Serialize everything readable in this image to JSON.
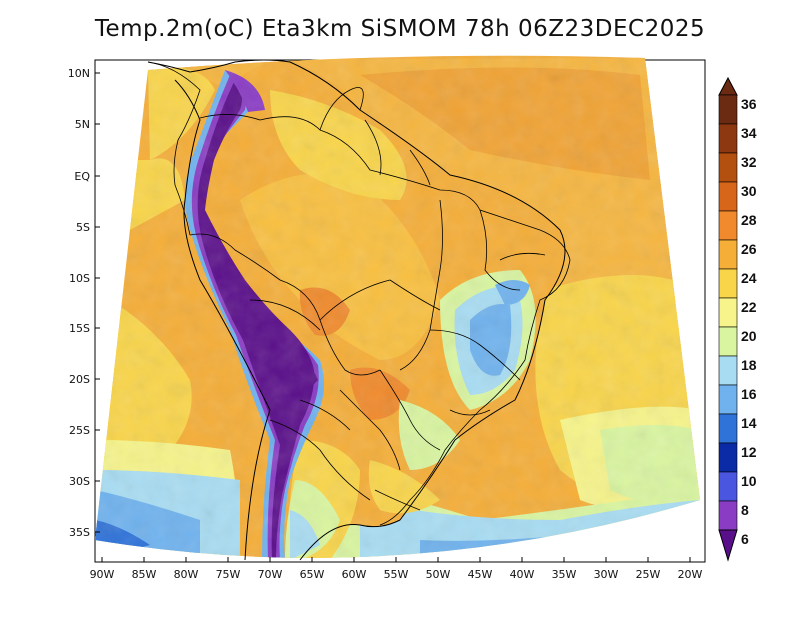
{
  "title": "Temp.2m(oC) Eta3km SiSMOM 78h 06Z23DEC2025",
  "lat_labels": [
    "10N",
    "5N",
    "EQ",
    "5S",
    "10S",
    "15S",
    "20S",
    "25S",
    "30S",
    "35S"
  ],
  "lon_labels": [
    "90W",
    "85W",
    "80W",
    "75W",
    "70W",
    "65W",
    "60W",
    "55W",
    "50W",
    "45W",
    "40W",
    "35W",
    "30W",
    "25W",
    "20W"
  ],
  "colorbar": {
    "labels": [
      "36",
      "34",
      "32",
      "30",
      "28",
      "26",
      "24",
      "22",
      "20",
      "18",
      "16",
      "14",
      "12",
      "10",
      "8",
      "6"
    ],
    "colors": [
      "#6b2a12",
      "#8e3812",
      "#b4500f",
      "#d8661a",
      "#f08a2c",
      "#f5ae38",
      "#f9d54a",
      "#f6f48a",
      "#d9f5a0",
      "#a8dcf2",
      "#6fb2ee",
      "#2f72d8",
      "#0a2aa6",
      "#4a56e0",
      "#8a3cc4",
      "#5a0f8a"
    ]
  },
  "icons": {
    "arrow_up": "colorbar-arrow-up-icon",
    "arrow_down": "colorbar-arrow-down-icon"
  }
}
